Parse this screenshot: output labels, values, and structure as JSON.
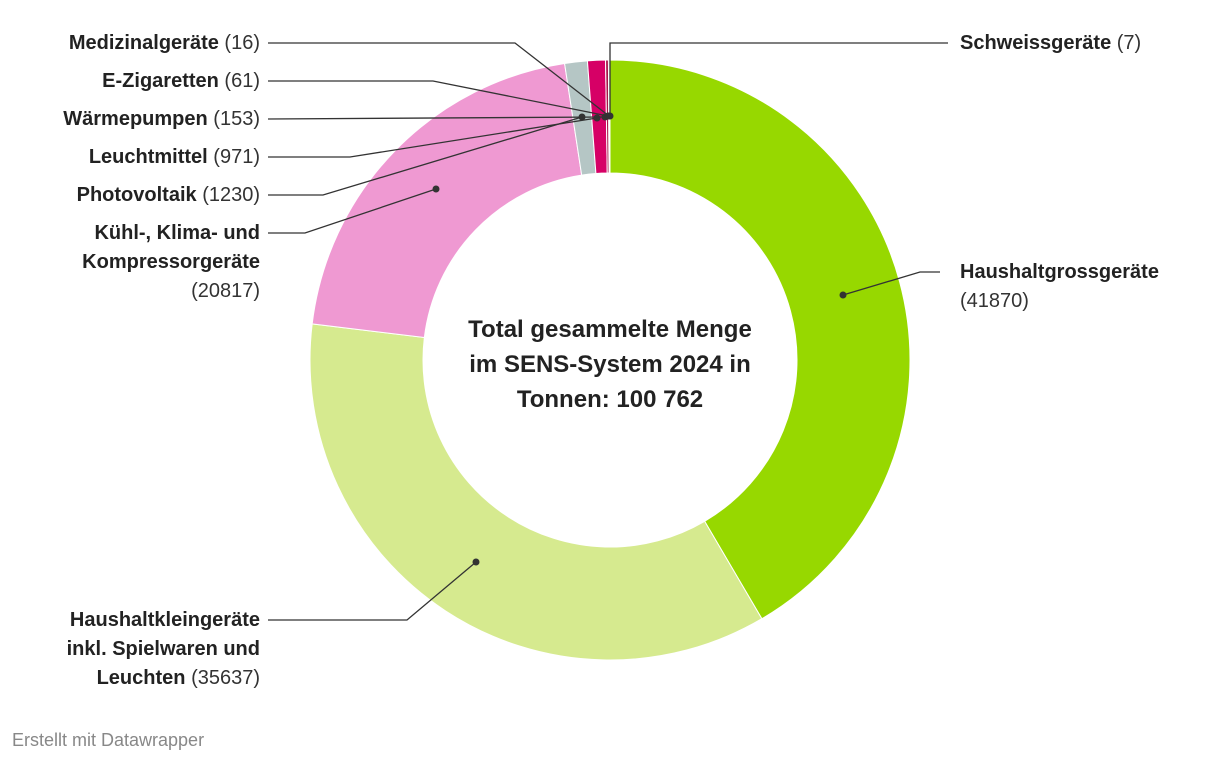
{
  "chart_data": {
    "type": "pie",
    "subtype": "donut",
    "center_label": "Total gesammelte Menge im SENS-System 2024 in Tonnen: 100 762",
    "slices": [
      {
        "label": "Haushaltgrossgeräte",
        "value": 41870,
        "color": "#97d800"
      },
      {
        "label": "Haushaltkleingeräte inkl. Spielwaren und Leuchten",
        "value": 35637,
        "color": "#d6ea8f"
      },
      {
        "label": "Kühl-, Klima- und Kompressorgeräte",
        "value": 20817,
        "color": "#ef99d2"
      },
      {
        "label": "Photovoltaik",
        "value": 1230,
        "color": "#b5c6c5"
      },
      {
        "label": "Leuchtmittel",
        "value": 971,
        "color": "#d60066"
      },
      {
        "label": "Wärmepumpen",
        "value": 153,
        "color": "#a8144a"
      },
      {
        "label": "E-Zigaretten",
        "value": 61,
        "color": "#7a1335"
      },
      {
        "label": "Medizinalgeräte",
        "value": 16,
        "color": "#4d4d4d"
      },
      {
        "label": "Schweissgeräte",
        "value": 7,
        "color": "#2e8b57"
      }
    ]
  },
  "labels": {
    "haushaltgross": {
      "name": "Haushaltgrossgeräte",
      "value": "(41870)"
    },
    "haushaltklein": {
      "name1": "Haushaltkleingeräte",
      "name2": "inkl. Spielwaren und",
      "name3": "Leuchten",
      "value": "(35637)"
    },
    "kuehl": {
      "name1": "Kühl-, Klima- und",
      "name2": "Kompressorgeräte",
      "value": "(20817)"
    },
    "photovoltaik": {
      "name": "Photovoltaik",
      "value": "(1230)"
    },
    "leuchtmittel": {
      "name": "Leuchtmittel",
      "value": "(971)"
    },
    "waermepumpen": {
      "name": "Wärmepumpen",
      "value": "(153)"
    },
    "ezigaretten": {
      "name": "E-Zigaretten",
      "value": "(61)"
    },
    "medizinal": {
      "name": "Medizinalgeräte",
      "value": "(16)"
    },
    "schweiss": {
      "name": "Schweissgeräte",
      "value": "(7)"
    }
  },
  "center": {
    "line1": "Total gesammelte Menge",
    "line2": "im SENS-System 2024 in",
    "line3": "Tonnen: 100 762"
  },
  "footer": {
    "credit": "Erstellt mit Datawrapper"
  }
}
